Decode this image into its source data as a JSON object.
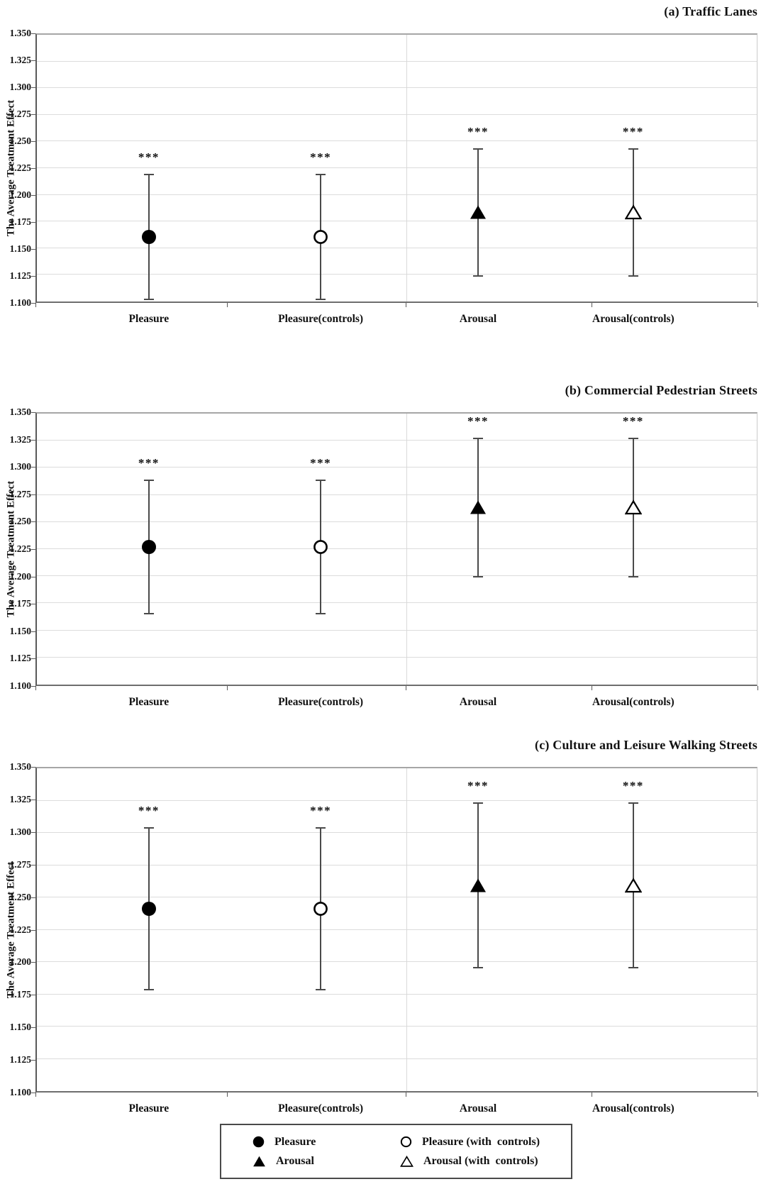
{
  "chart_data": [
    {
      "type": "scatter",
      "panel_id": "a",
      "title": "(a) Traffic Lanes",
      "ylabel": "The Average Treatment Effect",
      "xlabel": "",
      "ylim": [
        1.1,
        1.35
      ],
      "grid": true,
      "y_ticks": [
        "1.350",
        "1.325",
        "1.300",
        "1.275",
        "1.250",
        "1.225",
        "1.200",
        "1.175",
        "1.150",
        "1.125",
        "1.100"
      ],
      "categories": [
        "Pleasure",
        "Pleasure(controls)",
        "Arousal",
        "Arousal(controls)"
      ],
      "x_pos_pct": [
        15.7,
        39.5,
        61.3,
        82.8
      ],
      "divider_pct": 51.3,
      "series": [
        {
          "category": "Pleasure",
          "marker": "circle-filled",
          "value": 1.161,
          "ci_low": 1.103,
          "ci_high": 1.219,
          "sig": "***"
        },
        {
          "category": "Pleasure(controls)",
          "marker": "circle-open",
          "value": 1.161,
          "ci_low": 1.103,
          "ci_high": 1.219,
          "sig": "***"
        },
        {
          "category": "Arousal",
          "marker": "triangle-filled",
          "value": 1.184,
          "ci_low": 1.125,
          "ci_high": 1.243,
          "sig": "***"
        },
        {
          "category": "Arousal(controls)",
          "marker": "triangle-open",
          "value": 1.184,
          "ci_low": 1.125,
          "ci_high": 1.243,
          "sig": "***"
        }
      ]
    },
    {
      "type": "scatter",
      "panel_id": "b",
      "title": "(b) Commercial Pedestrian Streets",
      "ylabel": "The Average Treatment Effect",
      "xlabel": "",
      "ylim": [
        1.1,
        1.35
      ],
      "grid": true,
      "y_ticks": [
        "1.350",
        "1.325",
        "1.300",
        "1.275",
        "1.250",
        "1.225",
        "1.200",
        "1.175",
        "1.150",
        "1.125",
        "1.100"
      ],
      "categories": [
        "Pleasure",
        "Pleasure(controls)",
        "Arousal",
        "Arousal(controls)"
      ],
      "x_pos_pct": [
        15.7,
        39.5,
        61.3,
        82.8
      ],
      "divider_pct": 51.3,
      "series": [
        {
          "category": "Pleasure",
          "marker": "circle-filled",
          "value": 1.227,
          "ci_low": 1.166,
          "ci_high": 1.288,
          "sig": "***"
        },
        {
          "category": "Pleasure(controls)",
          "marker": "circle-open",
          "value": 1.227,
          "ci_low": 1.166,
          "ci_high": 1.288,
          "sig": "***"
        },
        {
          "category": "Arousal",
          "marker": "triangle-filled",
          "value": 1.263,
          "ci_low": 1.2,
          "ci_high": 1.326,
          "sig": "***"
        },
        {
          "category": "Arousal(controls)",
          "marker": "triangle-open",
          "value": 1.263,
          "ci_low": 1.2,
          "ci_high": 1.326,
          "sig": "***"
        }
      ]
    },
    {
      "type": "scatter",
      "panel_id": "c",
      "title": "(c) Culture and Leisure Walking Streets",
      "ylabel": "The Average Treatment Effect",
      "xlabel": "",
      "ylim": [
        1.1,
        1.35
      ],
      "grid": true,
      "y_ticks": [
        "1.350",
        "1.325",
        "1.300",
        "1.275",
        "1.250",
        "1.225",
        "1.200",
        "1.175",
        "1.150",
        "1.125",
        "1.100"
      ],
      "categories": [
        "Pleasure",
        "Pleasure(controls)",
        "Arousal",
        "Arousal(controls)"
      ],
      "x_pos_pct": [
        15.7,
        39.5,
        61.3,
        82.8
      ],
      "divider_pct": 51.3,
      "series": [
        {
          "category": "Pleasure",
          "marker": "circle-filled",
          "value": 1.241,
          "ci_low": 1.179,
          "ci_high": 1.303,
          "sig": "***"
        },
        {
          "category": "Pleasure(controls)",
          "marker": "circle-open",
          "value": 1.241,
          "ci_low": 1.179,
          "ci_high": 1.303,
          "sig": "***"
        },
        {
          "category": "Arousal",
          "marker": "triangle-filled",
          "value": 1.259,
          "ci_low": 1.196,
          "ci_high": 1.322,
          "sig": "***"
        },
        {
          "category": "Arousal(controls)",
          "marker": "triangle-open",
          "value": 1.259,
          "ci_low": 1.196,
          "ci_high": 1.322,
          "sig": "***"
        }
      ]
    }
  ],
  "legend": {
    "position": "bottom-center",
    "items": [
      {
        "marker": "circle-filled",
        "label": "Pleasure"
      },
      {
        "marker": "circle-open",
        "label": "Pleasure (with  controls)"
      },
      {
        "marker": "triangle-filled",
        "label": "Arousal"
      },
      {
        "marker": "triangle-open",
        "label": "Arousal (with  controls)"
      }
    ]
  },
  "colors": {
    "marker": "#000000",
    "error_bar": "#4a4a4a",
    "gridline": "#dcdcdc",
    "axis": "#595959"
  }
}
